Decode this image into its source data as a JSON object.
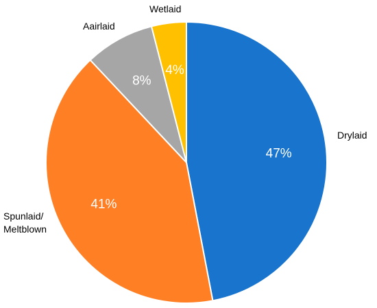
{
  "chart_data": {
    "type": "pie",
    "title": "",
    "slices": [
      {
        "label": "Drylaid",
        "label_lines": [
          "Drylaid"
        ],
        "value": 47,
        "display": "47%",
        "color": "#1874CD"
      },
      {
        "label": "Spunlaid/ Meltblown",
        "label_lines": [
          "Spunlaid/",
          "Meltblown"
        ],
        "value": 41,
        "display": "41%",
        "color": "#FF7F24"
      },
      {
        "label": "Aairlaid",
        "label_lines": [
          "Aairlaid"
        ],
        "value": 8,
        "display": "8%",
        "color": "#A6A6A6"
      },
      {
        "label": "Wetlaid",
        "label_lines": [
          "Wetlaid"
        ],
        "value": 4,
        "display": "4%",
        "color": "#FFC000"
      }
    ],
    "start_angle_deg": 0,
    "direction": "clockwise",
    "legend": "none"
  }
}
